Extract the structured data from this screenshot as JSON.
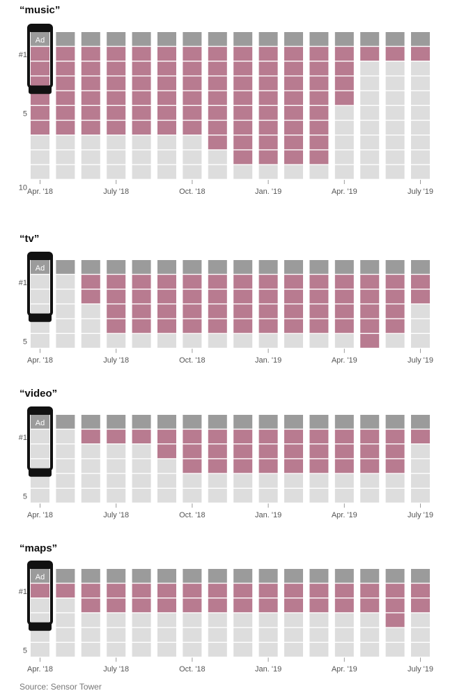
{
  "colors": {
    "ad": "#9b9b9b",
    "app": "#b87b90",
    "empty": "#dddddd",
    "phone": "#111111",
    "tick": "#999999"
  },
  "ad_label": "Ad",
  "source": "Source: Sensor Tower",
  "chart_data": [
    {
      "type": "bar",
      "title": "“music”",
      "rows": 10,
      "y_tick_labels": [
        {
          "rank": 1,
          "label": "#1"
        },
        {
          "rank": 5,
          "label": "5"
        },
        {
          "rank": 10,
          "label": "10"
        }
      ],
      "x_tick_labels": [
        {
          "index": 0,
          "label": "Apr. '18"
        },
        {
          "index": 3,
          "label": "July '18"
        },
        {
          "index": 6,
          "label": "Oct. '18"
        },
        {
          "index": 9,
          "label": "Jan. '19"
        },
        {
          "index": 12,
          "label": "Apr. '19"
        },
        {
          "index": 15,
          "label": "July '19"
        }
      ],
      "ad_slots": [
        1,
        1,
        1,
        1,
        1,
        1,
        1,
        1,
        1,
        1,
        1,
        1,
        1,
        1,
        1,
        1
      ],
      "app_slots": [
        6,
        6,
        6,
        6,
        6,
        6,
        6,
        7,
        8,
        8,
        8,
        8,
        4,
        1,
        1,
        1
      ]
    },
    {
      "type": "bar",
      "title": "“tv”",
      "rows": 6,
      "y_tick_labels": [
        {
          "rank": 1,
          "label": "#1"
        },
        {
          "rank": 5,
          "label": "5"
        }
      ],
      "x_tick_labels": [
        {
          "index": 0,
          "label": "Apr. '18"
        },
        {
          "index": 3,
          "label": "July '18"
        },
        {
          "index": 6,
          "label": "Oct. '18"
        },
        {
          "index": 9,
          "label": "Jan. '19"
        },
        {
          "index": 12,
          "label": "Apr. '19"
        },
        {
          "index": 15,
          "label": "July '19"
        }
      ],
      "ad_slots": [
        1,
        1,
        1,
        1,
        1,
        1,
        1,
        1,
        1,
        1,
        1,
        1,
        1,
        1,
        1,
        1
      ],
      "app_slots": [
        0,
        0,
        2,
        4,
        4,
        4,
        4,
        4,
        4,
        4,
        4,
        4,
        4,
        5,
        4,
        2
      ]
    },
    {
      "type": "bar",
      "title": "“video”",
      "rows": 6,
      "y_tick_labels": [
        {
          "rank": 1,
          "label": "#1"
        },
        {
          "rank": 5,
          "label": "5"
        }
      ],
      "x_tick_labels": [
        {
          "index": 0,
          "label": "Apr. '18"
        },
        {
          "index": 3,
          "label": "July '18"
        },
        {
          "index": 6,
          "label": "Oct. '18"
        },
        {
          "index": 9,
          "label": "Jan. '19"
        },
        {
          "index": 12,
          "label": "Apr. '19"
        },
        {
          "index": 15,
          "label": "July '19"
        }
      ],
      "ad_slots": [
        1,
        1,
        1,
        1,
        1,
        1,
        1,
        1,
        1,
        1,
        1,
        1,
        1,
        1,
        1,
        1
      ],
      "app_slots": [
        0,
        0,
        1,
        1,
        1,
        2,
        3,
        3,
        3,
        3,
        3,
        3,
        3,
        3,
        3,
        1
      ]
    },
    {
      "type": "bar",
      "title": "“maps”",
      "rows": 6,
      "y_tick_labels": [
        {
          "rank": 1,
          "label": "#1"
        },
        {
          "rank": 5,
          "label": "5"
        }
      ],
      "x_tick_labels": [
        {
          "index": 0,
          "label": "Apr. '18"
        },
        {
          "index": 3,
          "label": "July '18"
        },
        {
          "index": 6,
          "label": "Oct. '18"
        },
        {
          "index": 9,
          "label": "Jan. '19"
        },
        {
          "index": 12,
          "label": "Apr. '19"
        },
        {
          "index": 15,
          "label": "July '19"
        }
      ],
      "ad_slots": [
        1,
        1,
        1,
        1,
        1,
        1,
        1,
        1,
        1,
        1,
        1,
        1,
        1,
        1,
        1,
        1
      ],
      "app_slots": [
        1,
        1,
        2,
        2,
        2,
        2,
        2,
        2,
        2,
        2,
        2,
        2,
        2,
        2,
        3,
        2
      ]
    }
  ]
}
